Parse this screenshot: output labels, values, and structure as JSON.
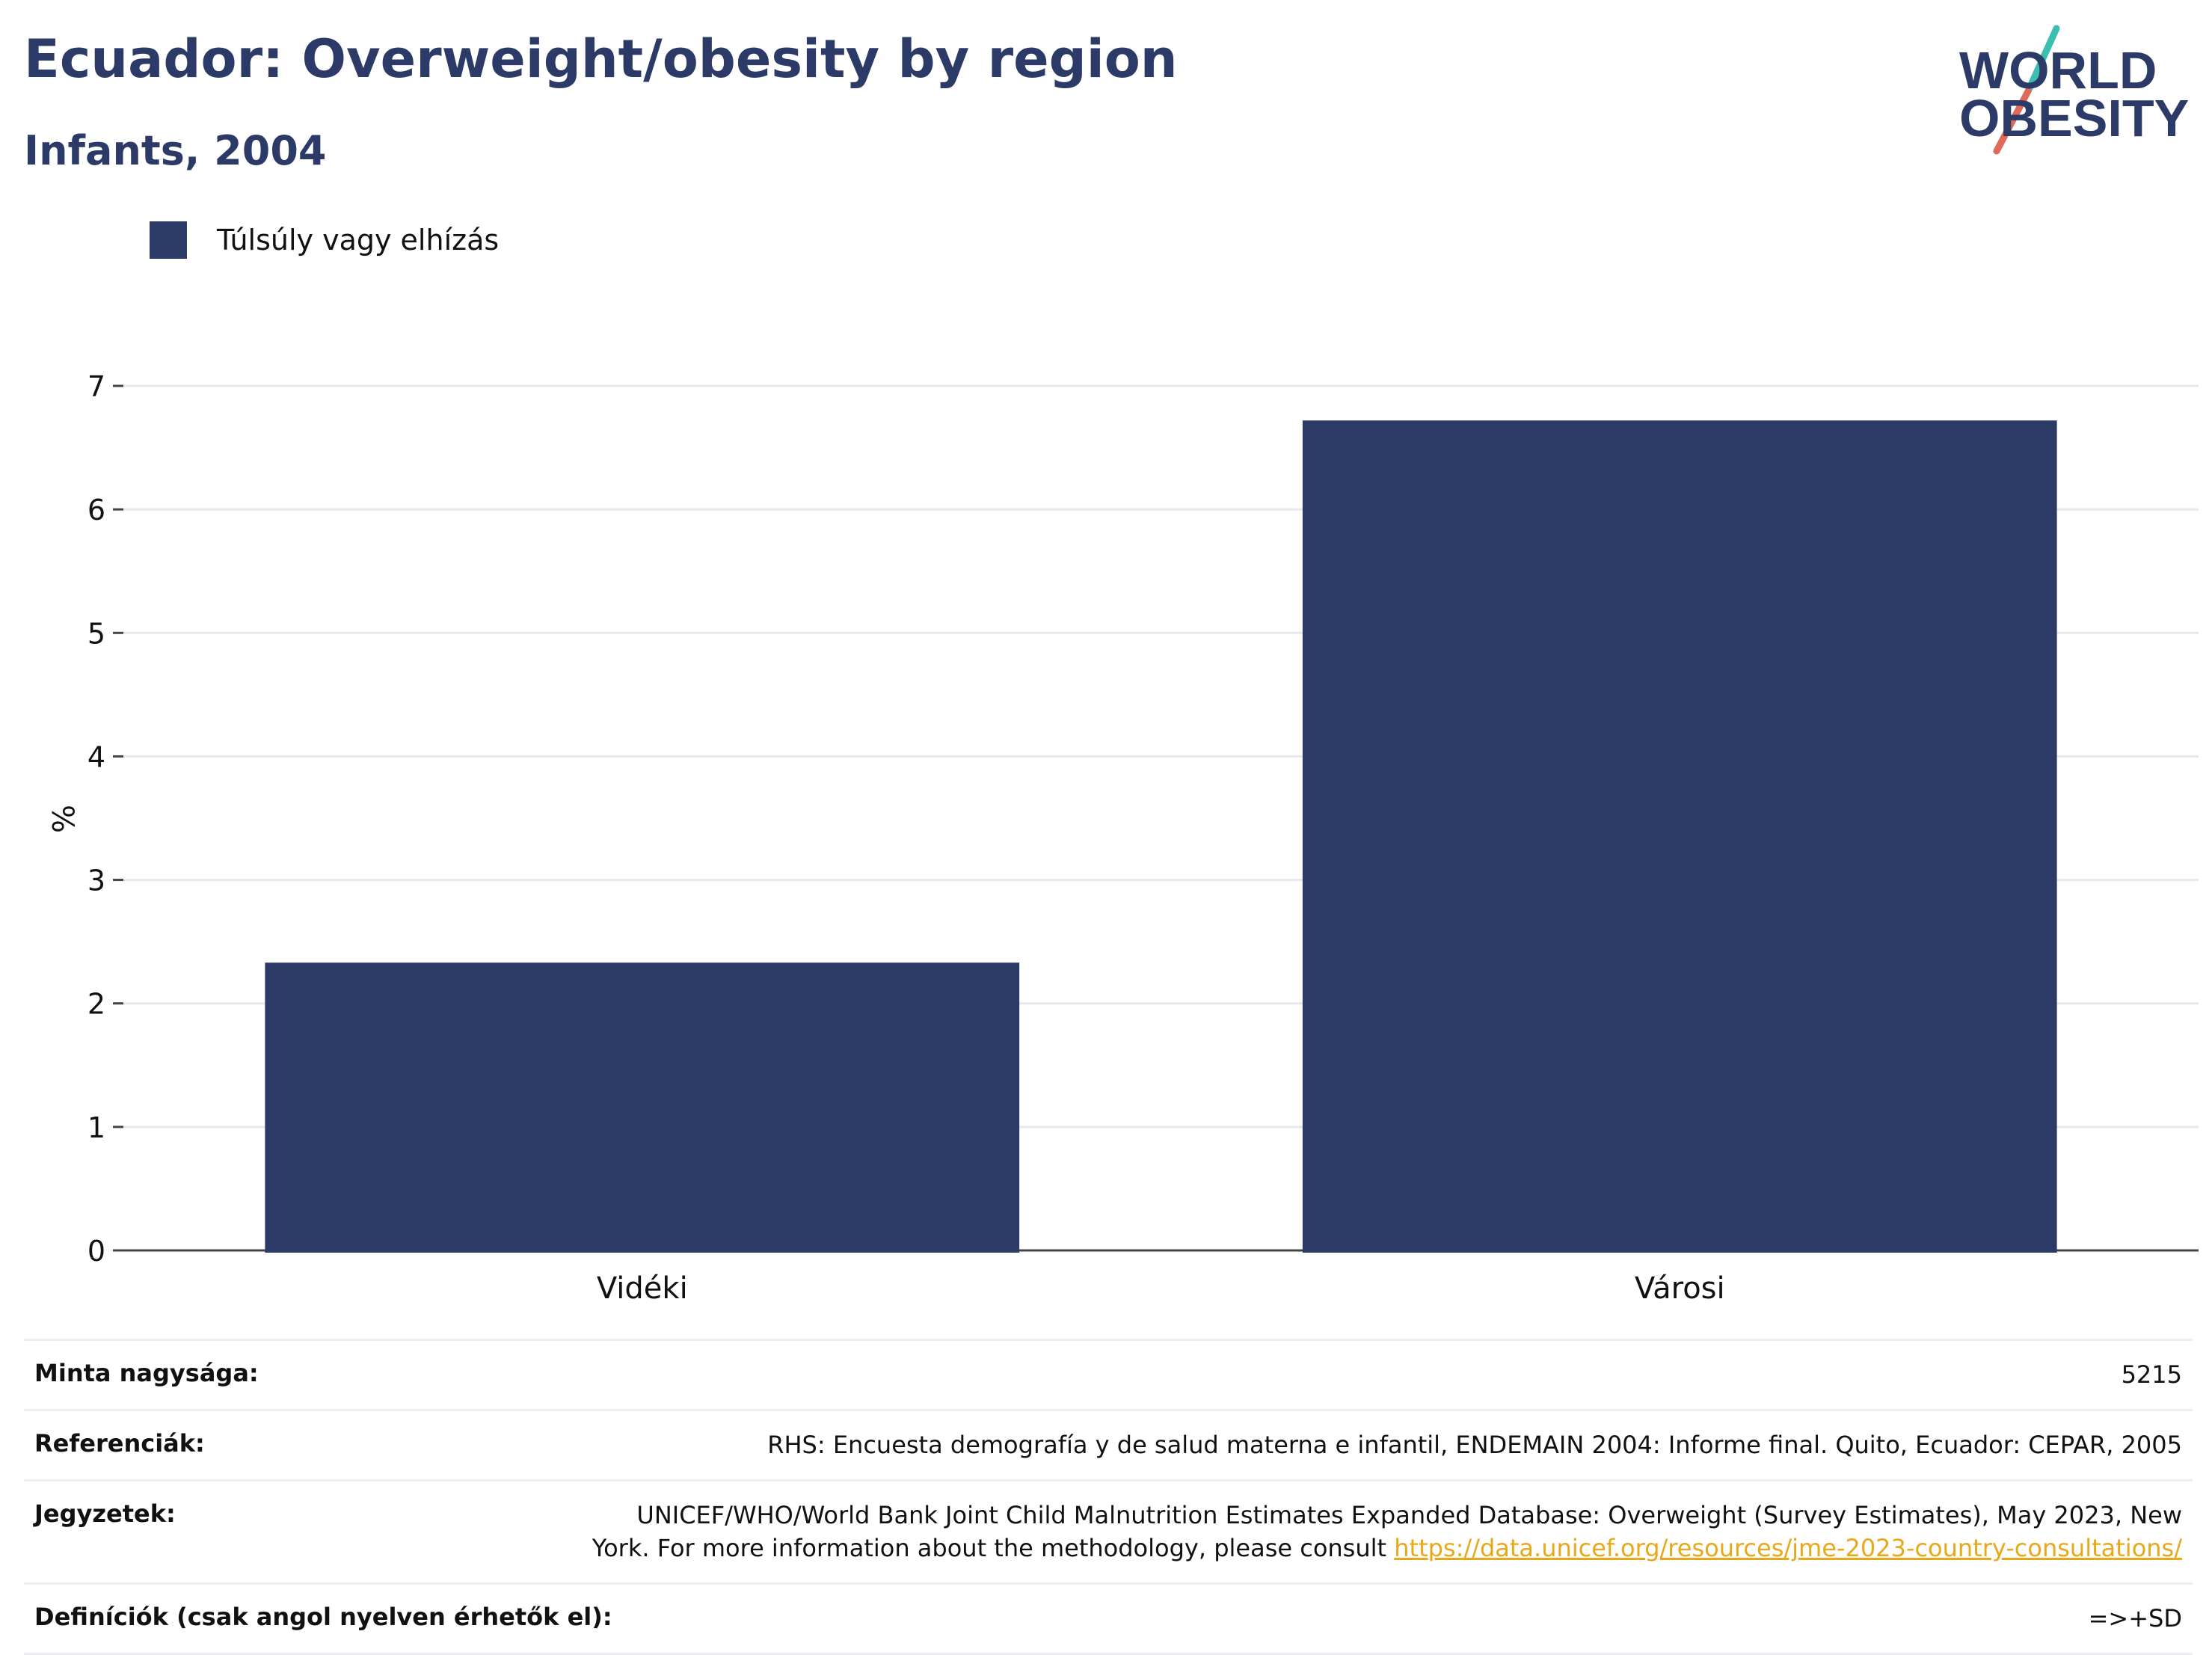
{
  "header": {
    "title": "Ecuador: Overweight/obesity by region",
    "subtitle": "Infants, 2004"
  },
  "logo": {
    "line1": "WORLD",
    "line2": "OBESITY",
    "text_color": "#2b3a67",
    "slash_colors": [
      "#3bbfb2",
      "#e06a5a"
    ]
  },
  "legend": {
    "label": "Túlsúly vagy elhízás",
    "color": "#2b3a67"
  },
  "chart_data": {
    "type": "bar",
    "categories": [
      "Vidéki",
      "Városi"
    ],
    "series": [
      {
        "name": "Túlsúly vagy elhízás",
        "values": [
          2.33,
          6.72
        ],
        "color": "#2b3a67"
      }
    ],
    "ylabel": "%",
    "ylim": [
      0,
      7
    ],
    "yticks": [
      0,
      1,
      2,
      3,
      4,
      5,
      6,
      7
    ],
    "grid": true,
    "legend_position": "top-left"
  },
  "meta": {
    "sample_size": {
      "label": "Minta nagysága:",
      "value": "5215"
    },
    "references": {
      "label": "Referenciák:",
      "value": "RHS: Encuesta demografía y de salud materna e infantil, ENDEMAIN 2004: Informe final. Quito, Ecuador: CEPAR, 2005"
    },
    "notes": {
      "label": "Jegyzetek:",
      "text": "UNICEF/WHO/World Bank Joint Child Malnutrition Estimates Expanded Database: Overweight (Survey Estimates), May 2023, New York. For more information about the methodology, please consult ",
      "link": "https://data.unicef.org/resources/jme-2023-country-consultations/"
    },
    "definitions": {
      "label": "Definíciók (csak angol nyelven érhetők el):",
      "value": "=>+SD"
    }
  }
}
